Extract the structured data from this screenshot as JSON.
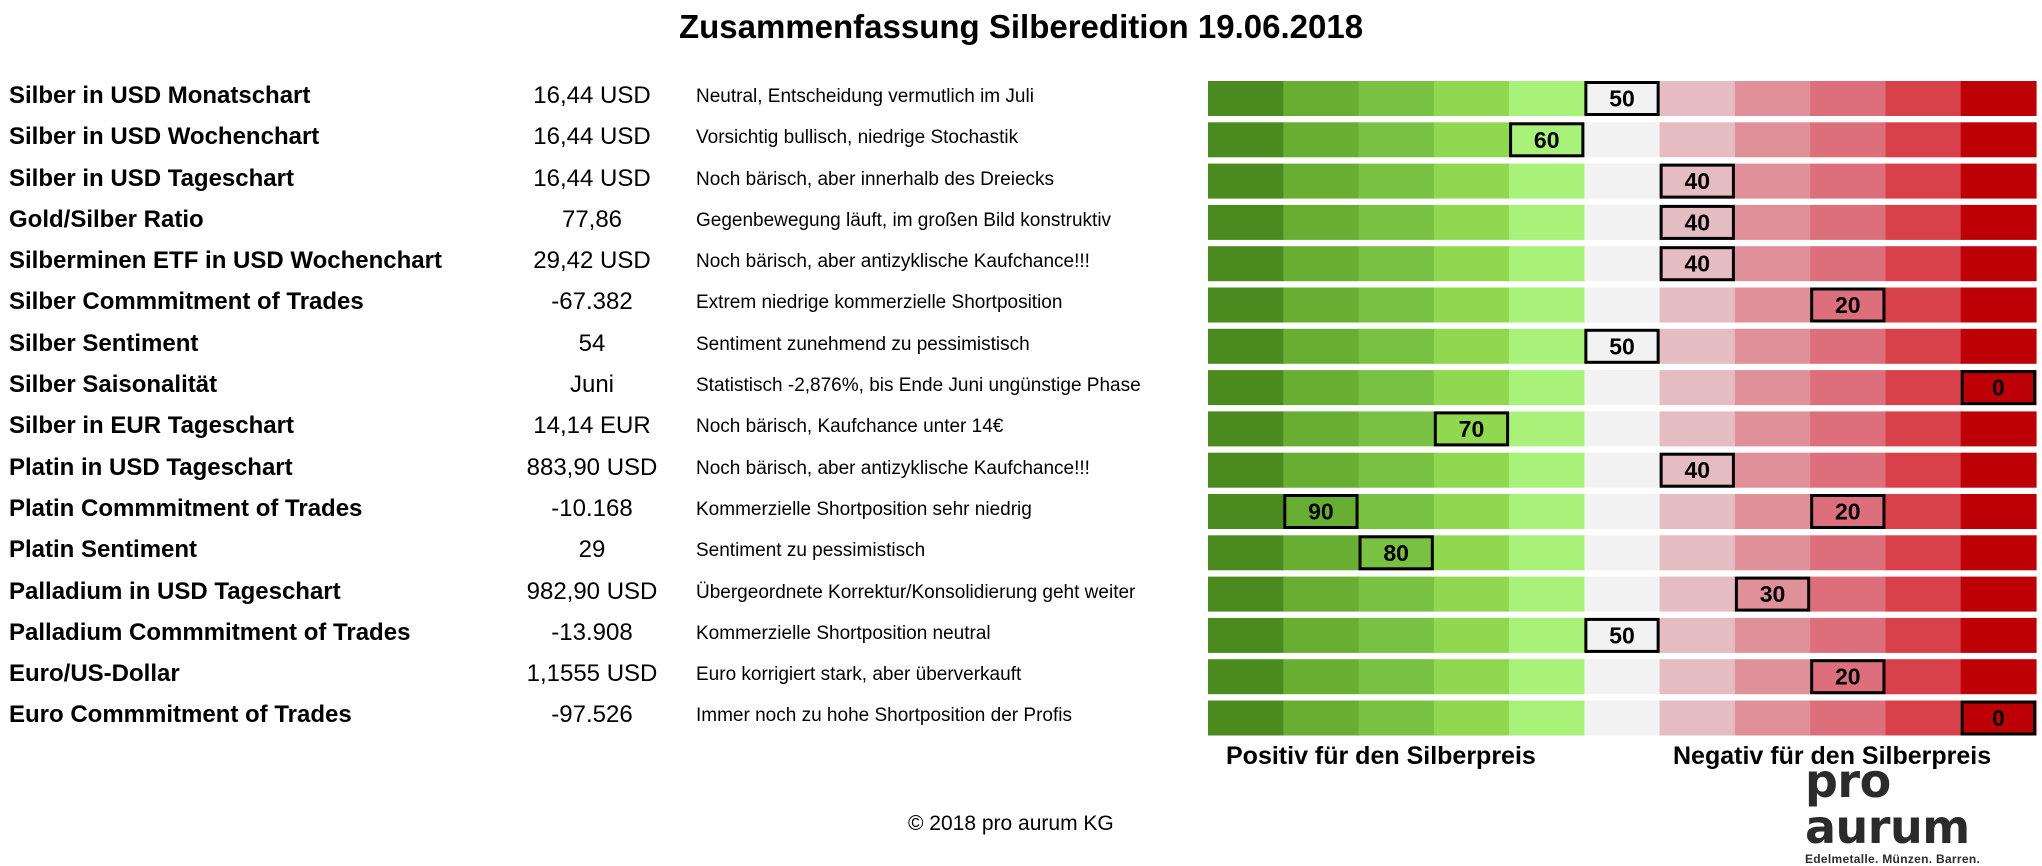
{
  "title": "Zusammenfassung Silberedition 19.06.2018",
  "chart_data": {
    "type": "table",
    "scale": [
      0,
      100
    ],
    "scale_step": 10,
    "segment_colors": [
      "#4a8a1f",
      "#67ae33",
      "#79c143",
      "#8fd84f",
      "#a8f27a",
      "#f2f2f2",
      "#e6bcc3",
      "#e09099",
      "#dc6f7b",
      "#d8404a",
      "#bd0006"
    ],
    "rows": [
      {
        "name": "Silber in USD Monatschart",
        "value": "16,44 USD",
        "comment": "Neutral, Entscheidung vermutlich im Juli",
        "score": 50
      },
      {
        "name": "Silber in USD Wochenchart",
        "value": "16,44 USD",
        "comment": "Vorsichtig bullisch, niedrige Stochastik",
        "score": 60
      },
      {
        "name": "Silber in USD Tageschart",
        "value": "16,44 USD",
        "comment": "Noch bärisch, aber innerhalb des Dreiecks",
        "score": 40
      },
      {
        "name": "Gold/Silber Ratio",
        "value": "77,86",
        "comment": "Gegenbewegung läuft, im großen Bild konstruktiv",
        "score": 40
      },
      {
        "name": "Silberminen ETF in USD Wochenchart",
        "value": "29,42 USD",
        "comment": "Noch bärisch, aber antizyklische Kaufchance!!!",
        "score": 40
      },
      {
        "name": "Silber Commmitment of Trades",
        "value": "-67.382",
        "comment": "Extrem niedrige kommerzielle Shortposition",
        "score": 20
      },
      {
        "name": "Silber Sentiment",
        "value": "54",
        "comment": "Sentiment zunehmend zu pessimistisch",
        "score": 50
      },
      {
        "name": "Silber Saisonalität",
        "value": "Juni",
        "comment": "Statistisch -2,876%, bis Ende Juni ungünstige Phase",
        "score": 0
      },
      {
        "name": "Silber in EUR Tageschart",
        "value": "14,14 EUR",
        "comment": "Noch bärisch, Kaufchance unter 14€",
        "score": 70
      },
      {
        "name": "Platin in USD Tageschart",
        "value": "883,90 USD",
        "comment": "Noch bärisch, aber antizyklische Kaufchance!!!",
        "score": 40
      },
      {
        "name": "Platin Commmitment of Trades",
        "value": "-10.168",
        "comment": "Kommerzielle Shortposition sehr niedrig",
        "score": [
          90,
          20
        ]
      },
      {
        "name": "Platin Sentiment",
        "value": "29",
        "comment": "Sentiment zu pessimistisch",
        "score": 80
      },
      {
        "name": "Palladium in USD Tageschart",
        "value": "982,90 USD",
        "comment": "Übergeordnete Korrektur/Konsolidierung geht weiter",
        "score": 30
      },
      {
        "name": "Palladium Commmitment of Trades",
        "value": "-13.908",
        "comment": "Kommerzielle Shortposition neutral",
        "score": 50
      },
      {
        "name": "Euro/US-Dollar",
        "value": "1,1555 USD",
        "comment": "Euro korrigiert stark, aber überverkauft",
        "score": 20
      },
      {
        "name": "Euro Commmitment of Trades",
        "value": "-97.526",
        "comment": "Immer noch zu hohe Shortposition der Profis",
        "score": 0
      }
    ],
    "positive_label": "Positiv für den Silberpreis",
    "negative_label": "Negativ für den Silberpreis"
  },
  "footer": {
    "copyright": "© 2018 pro aurum KG"
  },
  "logo": {
    "text": "pro aurum",
    "tagline": "Edelmetalle. Münzen. Barren."
  }
}
